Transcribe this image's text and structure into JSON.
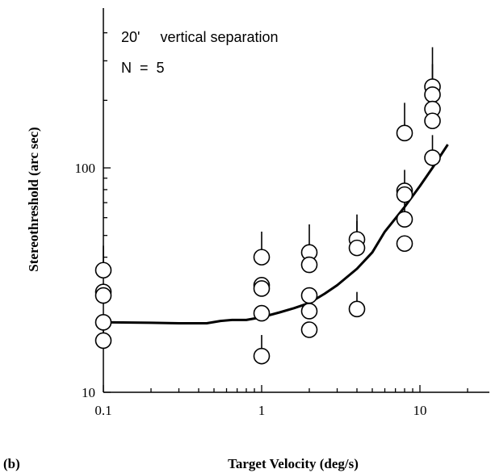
{
  "panel_label": "(b)",
  "chart_data": {
    "type": "scatter",
    "title": "",
    "xlabel": "Target Velocity (deg/s)",
    "ylabel": "Stereothreshold (arc sec)",
    "x_scale": "log",
    "y_scale": "log",
    "xlim": [
      0.1,
      30
    ],
    "ylim": [
      10,
      400
    ],
    "x_ticks": [
      {
        "value": 0.1,
        "label": "0.1"
      },
      {
        "value": 1,
        "label": "1"
      },
      {
        "value": 10,
        "label": "10"
      }
    ],
    "y_ticks": [
      {
        "value": 10,
        "label": "10"
      },
      {
        "value": 100,
        "label": "100"
      }
    ],
    "grid": false,
    "annotations": [
      {
        "text": "20'     vertical separation"
      },
      {
        "text": "N  =  5"
      }
    ],
    "points": [
      {
        "x": 0.1,
        "y": 35,
        "err_hi": 45
      },
      {
        "x": 0.1,
        "y": 28
      },
      {
        "x": 0.1,
        "y": 27
      },
      {
        "x": 0.1,
        "y": 20.5
      },
      {
        "x": 0.1,
        "y": 17,
        "err_hi": 20
      },
      {
        "x": 1,
        "y": 40,
        "err_hi": 52
      },
      {
        "x": 1,
        "y": 30
      },
      {
        "x": 1,
        "y": 29
      },
      {
        "x": 1,
        "y": 22.5
      },
      {
        "x": 1,
        "y": 14.5,
        "err_hi": 18
      },
      {
        "x": 2,
        "y": 42,
        "err_hi": 56
      },
      {
        "x": 2,
        "y": 37
      },
      {
        "x": 2,
        "y": 27
      },
      {
        "x": 2,
        "y": 23
      },
      {
        "x": 2,
        "y": 19
      },
      {
        "x": 4,
        "y": 48,
        "err_hi": 62
      },
      {
        "x": 4,
        "y": 44,
        "err_hi": 58
      },
      {
        "x": 4,
        "y": 23.5,
        "err_hi": 28
      },
      {
        "x": 8,
        "y": 143,
        "err_hi": 195
      },
      {
        "x": 8,
        "y": 79,
        "err_hi": 98
      },
      {
        "x": 8,
        "y": 76
      },
      {
        "x": 8,
        "y": 59,
        "err_hi": 75
      },
      {
        "x": 8,
        "y": 46
      },
      {
        "x": 12,
        "y": 230,
        "err_hi": 345
      },
      {
        "x": 12,
        "y": 212,
        "err_hi": 290
      },
      {
        "x": 12,
        "y": 183
      },
      {
        "x": 12,
        "y": 162
      },
      {
        "x": 12,
        "y": 111,
        "err_hi": 140
      }
    ],
    "fit_line": {
      "x": [
        0.1,
        0.2,
        0.3,
        0.45,
        0.55,
        0.65,
        0.8,
        1.0,
        1.3,
        1.6,
        2.0,
        2.5,
        3.0,
        4.0,
        5.0,
        6.0,
        8.0,
        10.0,
        12.0,
        15.0
      ],
      "y": [
        20.5,
        20.4,
        20.3,
        20.3,
        20.8,
        21.0,
        21.0,
        21.6,
        22.7,
        23.7,
        25.0,
        27.5,
        30.0,
        35.5,
        42.0,
        52.0,
        67.0,
        83.0,
        100.0,
        127.0
      ]
    }
  }
}
